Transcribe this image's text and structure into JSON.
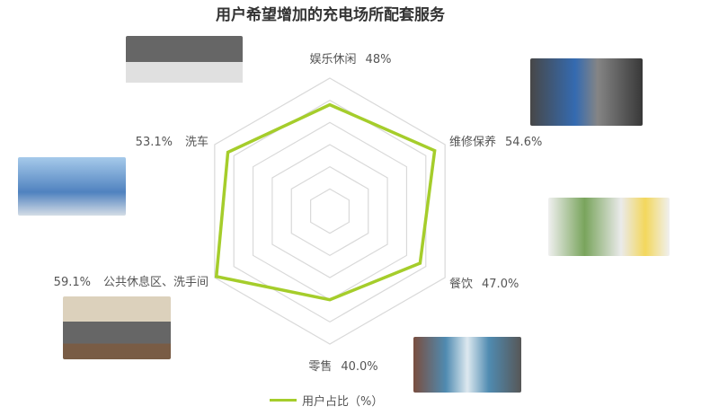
{
  "chart_data": {
    "type": "radar",
    "title": "用户希望增加的充电场所配套服务",
    "categories": [
      "娱乐休闲",
      "维修保养",
      "餐饮",
      "零售",
      "公共休息区、洗手间",
      "洗车"
    ],
    "value_labels": [
      "48%",
      "54.6%",
      "47.0%",
      "40.0%",
      "59.1%",
      "53.1%"
    ],
    "series": [
      {
        "name": "用户占比（%）",
        "values": [
          48,
          54.6,
          47.0,
          40.0,
          59.1,
          53.1
        ],
        "color": "#a5cd2b"
      }
    ],
    "rmax": 60,
    "rings": 6,
    "grid": true,
    "legend": "bottom"
  }
}
